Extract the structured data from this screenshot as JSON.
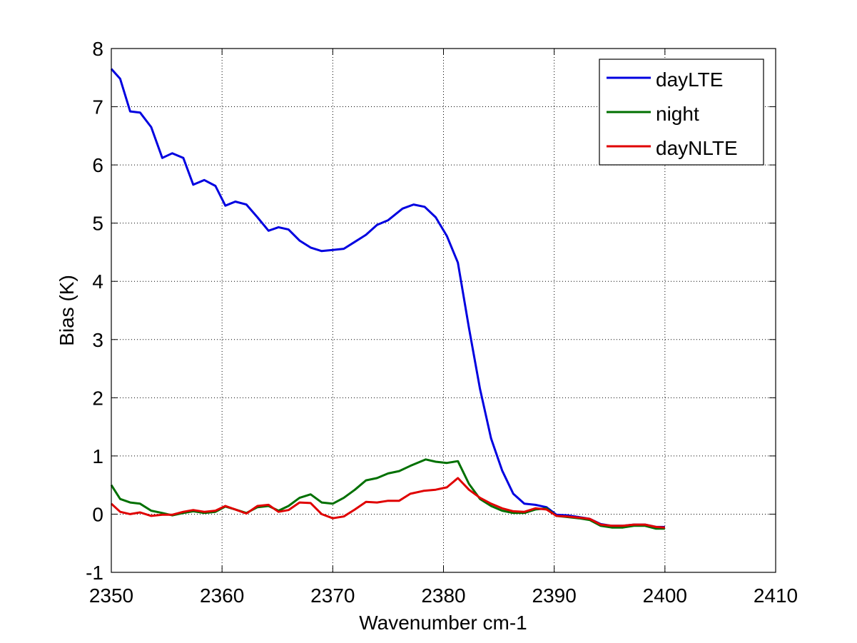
{
  "colors": {
    "background": "#ffffff",
    "axes": "#000000",
    "grid": "#000000",
    "dayLTE": "#0000e0",
    "night": "#007000",
    "dayNLTE": "#e00000"
  },
  "chart_data": {
    "type": "line",
    "title": "",
    "xlabel": "Wavenumber cm-1",
    "ylabel": "Bias (K)",
    "xlim": [
      2350,
      2410
    ],
    "ylim": [
      -1,
      8
    ],
    "xticks": [
      "2350",
      "2360",
      "2370",
      "2380",
      "2390",
      "2400",
      "2410"
    ],
    "yticks": [
      "-1",
      "0",
      "1",
      "2",
      "3",
      "4",
      "5",
      "6",
      "7",
      "8"
    ],
    "grid": true,
    "legend_position": "top-right",
    "series": [
      {
        "name": "dayLTE",
        "color": "#0000e0",
        "points": [
          [
            2350,
            7.65
          ],
          [
            2350.8,
            7.48
          ],
          [
            2351.7,
            6.92
          ],
          [
            2352.6,
            6.9
          ],
          [
            2353.6,
            6.65
          ],
          [
            2354.6,
            6.12
          ],
          [
            2355.5,
            6.2
          ],
          [
            2356.5,
            6.12
          ],
          [
            2357.4,
            5.66
          ],
          [
            2358.4,
            5.74
          ],
          [
            2359.4,
            5.64
          ],
          [
            2360.3,
            5.3
          ],
          [
            2361.2,
            5.37
          ],
          [
            2362.2,
            5.32
          ],
          [
            2363.2,
            5.1
          ],
          [
            2364.2,
            4.87
          ],
          [
            2365.1,
            4.93
          ],
          [
            2366,
            4.89
          ],
          [
            2367,
            4.7
          ],
          [
            2368,
            4.58
          ],
          [
            2369,
            4.52
          ],
          [
            2370,
            4.54
          ],
          [
            2371,
            4.56
          ],
          [
            2372,
            4.68
          ],
          [
            2373,
            4.8
          ],
          [
            2374,
            4.97
          ],
          [
            2375,
            5.05
          ],
          [
            2376.3,
            5.25
          ],
          [
            2377.3,
            5.32
          ],
          [
            2378.3,
            5.28
          ],
          [
            2379.3,
            5.1
          ],
          [
            2380.3,
            4.78
          ],
          [
            2381.3,
            4.32
          ],
          [
            2382.3,
            3.2
          ],
          [
            2383.3,
            2.15
          ],
          [
            2384.3,
            1.3
          ],
          [
            2385.3,
            0.75
          ],
          [
            2386.3,
            0.35
          ],
          [
            2387.3,
            0.18
          ],
          [
            2388.3,
            0.16
          ],
          [
            2389.3,
            0.12
          ],
          [
            2390.2,
            -0.01
          ],
          [
            2391.2,
            -0.02
          ],
          [
            2392.2,
            -0.05
          ],
          [
            2393.2,
            -0.08
          ],
          [
            2394.2,
            -0.17
          ],
          [
            2395.2,
            -0.2
          ],
          [
            2396.2,
            -0.2
          ],
          [
            2397.2,
            -0.18
          ],
          [
            2398.2,
            -0.18
          ],
          [
            2399.2,
            -0.22
          ],
          [
            2400,
            -0.22
          ]
        ]
      },
      {
        "name": "night",
        "color": "#007000",
        "points": [
          [
            2350,
            0.5
          ],
          [
            2350.8,
            0.26
          ],
          [
            2351.7,
            0.2
          ],
          [
            2352.6,
            0.18
          ],
          [
            2353.6,
            0.06
          ],
          [
            2354.6,
            0.02
          ],
          [
            2355.5,
            -0.02
          ],
          [
            2356.5,
            0.02
          ],
          [
            2357.4,
            0.05
          ],
          [
            2358.4,
            0.02
          ],
          [
            2359.4,
            0.04
          ],
          [
            2360.3,
            0.13
          ],
          [
            2361.2,
            0.08
          ],
          [
            2362.2,
            0.02
          ],
          [
            2363.2,
            0.12
          ],
          [
            2364.2,
            0.14
          ],
          [
            2365.1,
            0.06
          ],
          [
            2366,
            0.14
          ],
          [
            2367,
            0.28
          ],
          [
            2368,
            0.34
          ],
          [
            2369,
            0.2
          ],
          [
            2370,
            0.18
          ],
          [
            2371,
            0.28
          ],
          [
            2372,
            0.42
          ],
          [
            2373,
            0.58
          ],
          [
            2374,
            0.62
          ],
          [
            2375,
            0.7
          ],
          [
            2376,
            0.74
          ],
          [
            2377,
            0.83
          ],
          [
            2378.4,
            0.94
          ],
          [
            2379.3,
            0.9
          ],
          [
            2380.3,
            0.88
          ],
          [
            2381.3,
            0.91
          ],
          [
            2382.3,
            0.52
          ],
          [
            2383.3,
            0.26
          ],
          [
            2384.3,
            0.14
          ],
          [
            2385.3,
            0.06
          ],
          [
            2386.3,
            0.02
          ],
          [
            2387.3,
            0.02
          ],
          [
            2388.3,
            0.08
          ],
          [
            2389.3,
            0.1
          ],
          [
            2390.2,
            -0.03
          ],
          [
            2391.2,
            -0.05
          ],
          [
            2392.2,
            -0.07
          ],
          [
            2393.2,
            -0.1
          ],
          [
            2394.2,
            -0.2
          ],
          [
            2395.2,
            -0.23
          ],
          [
            2396.2,
            -0.23
          ],
          [
            2397.2,
            -0.2
          ],
          [
            2398.2,
            -0.2
          ],
          [
            2399.2,
            -0.25
          ],
          [
            2400,
            -0.25
          ]
        ]
      },
      {
        "name": "dayNLTE",
        "color": "#e00000",
        "points": [
          [
            2350,
            0.18
          ],
          [
            2350.8,
            0.04
          ],
          [
            2351.7,
            0.0
          ],
          [
            2352.6,
            0.03
          ],
          [
            2353.6,
            -0.03
          ],
          [
            2354.6,
            -0.01
          ],
          [
            2355.5,
            -0.01
          ],
          [
            2356.5,
            0.04
          ],
          [
            2357.4,
            0.07
          ],
          [
            2358.4,
            0.04
          ],
          [
            2359.4,
            0.06
          ],
          [
            2360.3,
            0.14
          ],
          [
            2361.2,
            0.08
          ],
          [
            2362.2,
            0.01
          ],
          [
            2363.2,
            0.14
          ],
          [
            2364.2,
            0.16
          ],
          [
            2365.1,
            0.04
          ],
          [
            2366,
            0.07
          ],
          [
            2367,
            0.2
          ],
          [
            2368,
            0.19
          ],
          [
            2369,
            0.0
          ],
          [
            2370,
            -0.07
          ],
          [
            2371,
            -0.04
          ],
          [
            2372,
            0.08
          ],
          [
            2373,
            0.21
          ],
          [
            2374,
            0.2
          ],
          [
            2375,
            0.23
          ],
          [
            2376,
            0.23
          ],
          [
            2377,
            0.35
          ],
          [
            2378.2,
            0.4
          ],
          [
            2379.3,
            0.42
          ],
          [
            2380.3,
            0.46
          ],
          [
            2381.3,
            0.62
          ],
          [
            2382.3,
            0.42
          ],
          [
            2383.3,
            0.28
          ],
          [
            2384.3,
            0.18
          ],
          [
            2385.3,
            0.1
          ],
          [
            2386.3,
            0.05
          ],
          [
            2387.3,
            0.04
          ],
          [
            2388.3,
            0.1
          ],
          [
            2389.3,
            0.08
          ],
          [
            2390.2,
            -0.03
          ],
          [
            2391.2,
            -0.04
          ],
          [
            2392.2,
            -0.06
          ],
          [
            2393.2,
            -0.08
          ],
          [
            2394.2,
            -0.18
          ],
          [
            2395.2,
            -0.2
          ],
          [
            2396.2,
            -0.2
          ],
          [
            2397.2,
            -0.18
          ],
          [
            2398.2,
            -0.18
          ],
          [
            2399.2,
            -0.22
          ],
          [
            2400,
            -0.23
          ]
        ]
      }
    ]
  }
}
